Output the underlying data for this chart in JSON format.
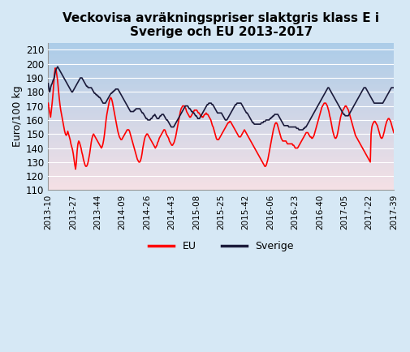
{
  "title": "Veckovisa avräkningspriser slaktgris klass E i\nSverige och EU 2013-2017",
  "ylabel": "Euro/100 kg",
  "ylim": [
    110,
    215
  ],
  "yticks": [
    110,
    120,
    130,
    140,
    150,
    160,
    170,
    180,
    190,
    200,
    210
  ],
  "bg_color": "#d6e8f5",
  "xtick_labels": [
    "2013-10",
    "2013-27",
    "2013-44",
    "2014-09",
    "2014-26",
    "2014-43",
    "2015-08",
    "2015-25",
    "2015-42",
    "2016-06",
    "2016-23",
    "2016-40",
    "2017-05",
    "2017-22",
    "2017-39"
  ],
  "eu_color": "#ff0000",
  "sverige_color": "#1a1a3a",
  "legend_eu": "EU",
  "legend_sverige": "Sverige",
  "eu_values": [
    172,
    168,
    165,
    162,
    167,
    172,
    178,
    185,
    193,
    197,
    196,
    192,
    188,
    182,
    176,
    171,
    167,
    164,
    161,
    158,
    155,
    152,
    150,
    149,
    150,
    152,
    150,
    148,
    146,
    143,
    141,
    139,
    136,
    132,
    128,
    125,
    130,
    138,
    143,
    145,
    144,
    142,
    140,
    137,
    135,
    132,
    130,
    128,
    127,
    127,
    128,
    130,
    133,
    136,
    140,
    144,
    147,
    149,
    150,
    149,
    148,
    147,
    146,
    145,
    144,
    143,
    142,
    141,
    140,
    141,
    143,
    146,
    150,
    155,
    160,
    164,
    167,
    170,
    173,
    175,
    176,
    175,
    173,
    170,
    167,
    164,
    161,
    158,
    155,
    152,
    150,
    148,
    147,
    146,
    146,
    147,
    148,
    149,
    150,
    151,
    152,
    153,
    153,
    153,
    152,
    150,
    148,
    146,
    144,
    142,
    140,
    138,
    136,
    134,
    132,
    131,
    130,
    130,
    131,
    133,
    136,
    140,
    143,
    146,
    148,
    149,
    150,
    150,
    149,
    148,
    147,
    146,
    145,
    144,
    143,
    142,
    141,
    140,
    141,
    142,
    144,
    145,
    147,
    148,
    149,
    150,
    151,
    152,
    153,
    153,
    152,
    150,
    149,
    148,
    147,
    145,
    144,
    143,
    142,
    142,
    143,
    144,
    146,
    148,
    151,
    154,
    157,
    160,
    163,
    166,
    168,
    169,
    170,
    170,
    170,
    169,
    168,
    166,
    165,
    164,
    163,
    162,
    162,
    163,
    164,
    165,
    166,
    167,
    167,
    167,
    167,
    166,
    165,
    165,
    164,
    163,
    163,
    162,
    162,
    163,
    164,
    164,
    165,
    164,
    164,
    163,
    162,
    161,
    160,
    158,
    156,
    155,
    153,
    151,
    149,
    147,
    146,
    146,
    146,
    147,
    148,
    149,
    150,
    151,
    152,
    153,
    154,
    155,
    156,
    157,
    158,
    158,
    159,
    159,
    158,
    157,
    156,
    155,
    154,
    153,
    152,
    151,
    150,
    149,
    148,
    148,
    148,
    149,
    150,
    151,
    152,
    153,
    152,
    151,
    150,
    149,
    148,
    147,
    146,
    145,
    144,
    143,
    142,
    141,
    140,
    139,
    138,
    137,
    136,
    135,
    134,
    133,
    132,
    131,
    130,
    129,
    128,
    127,
    127,
    128,
    130,
    132,
    135,
    138,
    141,
    144,
    147,
    150,
    153,
    155,
    157,
    158,
    158,
    157,
    155,
    153,
    151,
    149,
    147,
    146,
    145,
    145,
    145,
    145,
    145,
    144,
    143,
    143,
    143,
    143,
    143,
    143,
    143,
    142,
    142,
    141,
    140,
    140,
    140,
    140,
    141,
    142,
    143,
    144,
    145,
    146,
    147,
    148,
    149,
    150,
    151,
    151,
    151,
    150,
    149,
    148,
    148,
    147,
    147,
    148,
    149,
    151,
    153,
    155,
    157,
    159,
    161,
    163,
    165,
    167,
    169,
    170,
    171,
    172,
    172,
    172,
    171,
    170,
    168,
    166,
    163,
    161,
    158,
    155,
    152,
    150,
    148,
    147,
    147,
    148,
    150,
    153,
    156,
    159,
    162,
    164,
    166,
    167,
    168,
    169,
    170,
    170,
    169,
    168,
    167,
    165,
    163,
    161,
    159,
    157,
    155,
    153,
    151,
    149,
    148,
    147,
    146,
    145,
    144,
    143,
    142,
    141,
    140,
    139,
    138,
    137,
    136,
    135,
    134,
    133,
    132,
    131,
    130,
    150,
    155,
    157,
    158,
    159,
    159,
    158,
    157,
    156,
    154,
    152,
    150,
    148,
    147,
    147,
    148,
    150,
    152,
    155,
    157,
    159,
    160,
    161,
    161,
    160,
    159,
    157,
    155,
    153,
    151
  ],
  "sverige_values": [
    186,
    182,
    180,
    183,
    185,
    186,
    188,
    189,
    191,
    194,
    196,
    197,
    198,
    197,
    196,
    195,
    194,
    193,
    192,
    191,
    190,
    189,
    188,
    187,
    186,
    185,
    184,
    183,
    182,
    181,
    180,
    180,
    181,
    182,
    183,
    184,
    185,
    186,
    187,
    188,
    189,
    190,
    190,
    190,
    189,
    188,
    187,
    186,
    185,
    184,
    184,
    183,
    183,
    183,
    183,
    183,
    182,
    181,
    180,
    179,
    179,
    178,
    178,
    177,
    177,
    176,
    176,
    175,
    174,
    173,
    172,
    172,
    172,
    172,
    173,
    174,
    175,
    176,
    177,
    178,
    179,
    179,
    180,
    180,
    181,
    181,
    182,
    182,
    182,
    182,
    181,
    180,
    179,
    178,
    177,
    176,
    175,
    174,
    173,
    172,
    171,
    170,
    169,
    168,
    167,
    166,
    166,
    166,
    166,
    166,
    167,
    167,
    168,
    168,
    168,
    168,
    168,
    168,
    167,
    166,
    165,
    165,
    164,
    163,
    162,
    161,
    161,
    160,
    160,
    160,
    160,
    161,
    161,
    162,
    163,
    163,
    164,
    163,
    162,
    161,
    161,
    161,
    162,
    163,
    163,
    164,
    164,
    164,
    163,
    162,
    161,
    160,
    160,
    159,
    158,
    157,
    156,
    155,
    155,
    155,
    155,
    156,
    157,
    158,
    159,
    160,
    161,
    162,
    163,
    164,
    165,
    166,
    167,
    168,
    169,
    170,
    170,
    170,
    170,
    169,
    168,
    168,
    167,
    166,
    166,
    165,
    165,
    164,
    163,
    163,
    162,
    161,
    161,
    161,
    162,
    163,
    164,
    165,
    166,
    167,
    168,
    169,
    170,
    171,
    171,
    172,
    172,
    172,
    172,
    171,
    171,
    170,
    169,
    168,
    167,
    166,
    165,
    165,
    165,
    165,
    165,
    165,
    164,
    163,
    162,
    161,
    160,
    160,
    160,
    161,
    162,
    163,
    164,
    165,
    166,
    167,
    168,
    169,
    170,
    171,
    171,
    172,
    172,
    172,
    172,
    172,
    172,
    171,
    170,
    169,
    168,
    167,
    166,
    165,
    165,
    164,
    163,
    162,
    161,
    160,
    159,
    158,
    158,
    157,
    157,
    157,
    157,
    157,
    157,
    157,
    157,
    157,
    158,
    158,
    158,
    159,
    159,
    159,
    160,
    160,
    160,
    160,
    160,
    161,
    161,
    162,
    162,
    163,
    163,
    164,
    164,
    164,
    164,
    164,
    163,
    162,
    161,
    160,
    159,
    158,
    157,
    156,
    156,
    156,
    156,
    156,
    156,
    155,
    155,
    155,
    155,
    155,
    155,
    155,
    155,
    155,
    155,
    154,
    154,
    154,
    153,
    153,
    153,
    153,
    153,
    153,
    154,
    154,
    155,
    155,
    156,
    157,
    158,
    159,
    160,
    161,
    162,
    163,
    164,
    165,
    166,
    167,
    168,
    169,
    170,
    171,
    172,
    173,
    174,
    175,
    176,
    177,
    178,
    179,
    180,
    181,
    182,
    183,
    183,
    182,
    181,
    180,
    179,
    178,
    177,
    176,
    175,
    174,
    173,
    172,
    171,
    170,
    169,
    168,
    167,
    166,
    165,
    164,
    164,
    163,
    163,
    163,
    163,
    163,
    164,
    165,
    166,
    167,
    168,
    169,
    170,
    171,
    172,
    173,
    174,
    175,
    176,
    177,
    178,
    179,
    180,
    181,
    182,
    183,
    183,
    183,
    182,
    181,
    180,
    179,
    178,
    177,
    176,
    175,
    174,
    173,
    172,
    172,
    172,
    172,
    172,
    172,
    172,
    172,
    172,
    172,
    172,
    172,
    173,
    174,
    175,
    176,
    177,
    178,
    179,
    180,
    181,
    182,
    183,
    183,
    183,
    183
  ]
}
